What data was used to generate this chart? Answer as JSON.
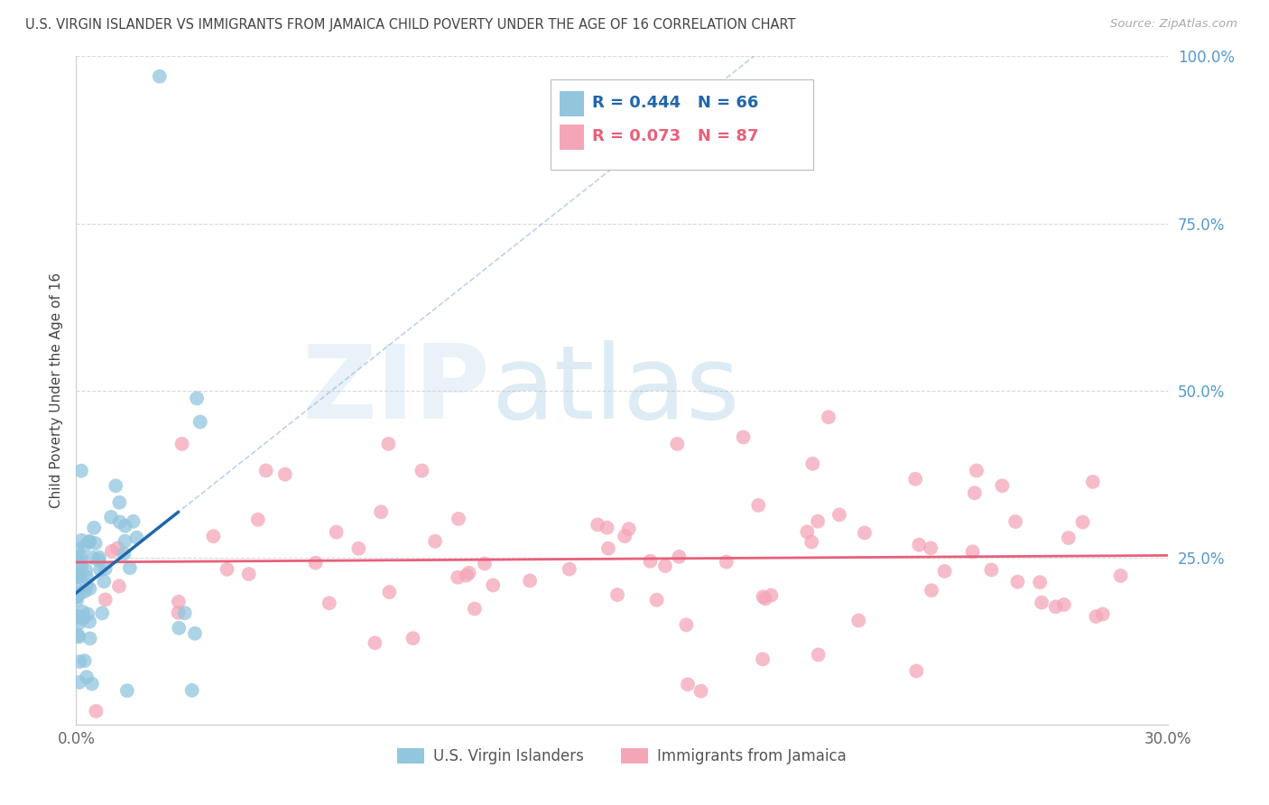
{
  "title": "U.S. VIRGIN ISLANDER VS IMMIGRANTS FROM JAMAICA CHILD POVERTY UNDER THE AGE OF 16 CORRELATION CHART",
  "source": "Source: ZipAtlas.com",
  "ylabel": "Child Poverty Under the Age of 16",
  "xlim": [
    0.0,
    0.3
  ],
  "ylim": [
    0.0,
    1.0
  ],
  "blue_color": "#92c5de",
  "pink_color": "#f4a6b8",
  "blue_line_color": "#2166ac",
  "pink_line_color": "#e8607a",
  "blue_dash_color": "#a0c0e0",
  "R_blue": 0.444,
  "N_blue": 66,
  "R_pink": 0.073,
  "N_pink": 87,
  "watermark_zip": "ZIP",
  "watermark_atlas": "atlas",
  "background_color": "#ffffff",
  "grid_color": "#d0d0d0",
  "title_color": "#444444",
  "right_axis_color": "#5599cc",
  "legend_text_blue": "R = 0.444   N = 66",
  "legend_text_pink": "R = 0.073   N = 87"
}
